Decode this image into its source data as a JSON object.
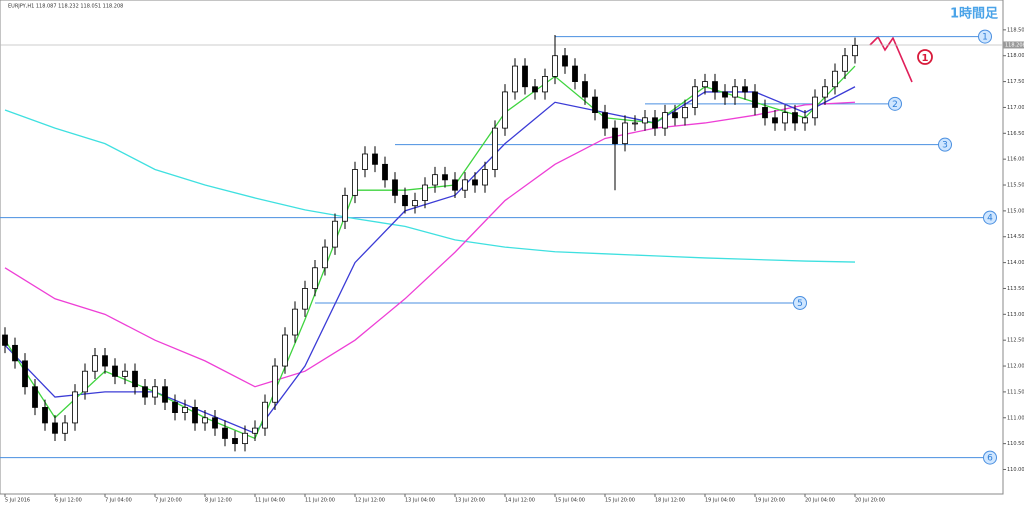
{
  "chart_data": {
    "type": "candlestick",
    "header": "EURJPY,H1 118.087 118.232 118.051 118.208",
    "title": "1時間足",
    "open": [
      112.6,
      112.4,
      112.1,
      111.6,
      111.2,
      110.9,
      110.7,
      110.9,
      111.5,
      111.9,
      112.2,
      112.0,
      111.8,
      111.9,
      111.6,
      111.4,
      111.6,
      111.3,
      111.1,
      111.2,
      110.9,
      111.0,
      110.8,
      110.6,
      110.5,
      110.7,
      110.8,
      111.3,
      112.0,
      112.6,
      113.1,
      113.5,
      113.9,
      114.3,
      114.8,
      115.3,
      115.8,
      116.1,
      115.9,
      115.6,
      115.3,
      115.1,
      115.2,
      115.5,
      115.7,
      115.6,
      115.4,
      115.6,
      115.5,
      115.8,
      116.6,
      117.3,
      117.8,
      117.4,
      117.3,
      117.6,
      118.0,
      117.8,
      117.5,
      117.2,
      116.9,
      116.6,
      116.3,
      116.7,
      116.7,
      116.8,
      116.6,
      116.9,
      116.8,
      117.0,
      117.4,
      117.5,
      117.3,
      117.2,
      117.4,
      117.3,
      117.0,
      116.8,
      116.7,
      116.9,
      116.7,
      116.8,
      117.2,
      117.4,
      117.7,
      118.0
    ],
    "high": [
      112.75,
      112.55,
      112.25,
      111.75,
      111.35,
      111.05,
      111.05,
      111.65,
      112.05,
      112.35,
      112.35,
      112.15,
      112.05,
      112.05,
      111.75,
      111.75,
      111.75,
      111.45,
      111.35,
      111.35,
      111.15,
      111.15,
      110.95,
      110.75,
      110.85,
      110.95,
      111.45,
      112.15,
      112.75,
      113.25,
      113.65,
      114.05,
      114.45,
      114.95,
      115.45,
      115.95,
      116.25,
      116.25,
      116.05,
      115.75,
      115.45,
      115.35,
      115.65,
      115.85,
      115.85,
      115.75,
      115.75,
      115.75,
      115.95,
      116.75,
      117.45,
      117.95,
      117.95,
      117.55,
      117.75,
      118.4,
      118.15,
      117.95,
      117.65,
      117.35,
      117.05,
      116.75,
      116.85,
      116.85,
      116.95,
      116.95,
      117.05,
      117.05,
      117.15,
      117.55,
      117.65,
      117.65,
      117.45,
      117.55,
      117.55,
      117.45,
      117.15,
      116.95,
      117.05,
      117.05,
      116.95,
      117.35,
      117.55,
      117.85,
      118.15,
      118.35
    ],
    "low": [
      112.25,
      111.95,
      111.45,
      111.05,
      110.75,
      110.55,
      110.55,
      110.75,
      111.35,
      111.75,
      111.85,
      111.65,
      111.65,
      111.45,
      111.25,
      111.25,
      111.15,
      110.95,
      110.95,
      110.75,
      110.75,
      110.65,
      110.45,
      110.35,
      110.35,
      110.55,
      110.65,
      111.15,
      111.85,
      112.45,
      112.95,
      113.35,
      113.75,
      114.15,
      114.65,
      115.15,
      115.65,
      115.75,
      115.45,
      115.15,
      114.95,
      114.95,
      115.05,
      115.35,
      115.45,
      115.25,
      115.25,
      115.35,
      115.35,
      115.65,
      116.45,
      117.15,
      117.25,
      117.15,
      117.15,
      117.45,
      117.65,
      117.35,
      117.05,
      116.75,
      116.45,
      115.4,
      116.15,
      116.55,
      116.55,
      116.45,
      116.45,
      116.65,
      116.65,
      116.85,
      117.25,
      117.15,
      117.05,
      117.05,
      117.15,
      116.85,
      116.65,
      116.55,
      116.55,
      116.55,
      116.55,
      116.65,
      117.05,
      117.25,
      117.55,
      117.85
    ],
    "close": [
      112.4,
      112.1,
      111.6,
      111.2,
      110.9,
      110.7,
      110.9,
      111.5,
      111.9,
      112.2,
      112.0,
      111.8,
      111.9,
      111.6,
      111.4,
      111.6,
      111.3,
      111.1,
      111.2,
      110.9,
      111.0,
      110.8,
      110.6,
      110.5,
      110.7,
      110.8,
      111.3,
      112.0,
      112.6,
      113.1,
      113.5,
      113.9,
      114.3,
      114.8,
      115.3,
      115.8,
      116.1,
      115.9,
      115.6,
      115.3,
      115.1,
      115.2,
      115.5,
      115.7,
      115.6,
      115.4,
      115.6,
      115.5,
      115.8,
      116.6,
      117.3,
      117.8,
      117.4,
      117.3,
      117.6,
      118.0,
      117.8,
      117.5,
      117.2,
      116.9,
      116.6,
      116.3,
      116.7,
      116.7,
      116.8,
      116.6,
      116.9,
      116.8,
      117.0,
      117.4,
      117.5,
      117.3,
      117.2,
      117.4,
      117.3,
      117.0,
      116.8,
      116.7,
      116.9,
      116.7,
      116.8,
      117.2,
      117.4,
      117.7,
      118.0,
      118.2
    ],
    "ma_x": [
      0,
      5,
      10,
      15,
      20,
      25,
      30,
      35,
      40,
      45,
      50,
      55,
      60,
      65,
      70,
      75,
      80,
      85
    ],
    "ma_lines": [
      {
        "color": "#3fe0e0",
        "values": [
          116.95,
          116.6,
          116.3,
          115.8,
          115.5,
          115.25,
          115.02,
          114.85,
          114.7,
          114.44,
          114.3,
          114.21,
          114.17,
          114.13,
          114.09,
          114.06,
          114.03,
          114.01
        ]
      },
      {
        "color": "#ee3fd6",
        "values": [
          113.9,
          113.3,
          113.0,
          112.5,
          112.1,
          111.6,
          111.9,
          112.5,
          113.3,
          114.2,
          115.2,
          115.9,
          116.4,
          116.6,
          116.7,
          116.85,
          117.05,
          117.1
        ]
      },
      {
        "color": "#3b3bd6",
        "values": [
          112.4,
          111.4,
          111.5,
          111.5,
          111.1,
          110.7,
          112.0,
          114.0,
          115.0,
          115.3,
          116.3,
          117.1,
          116.9,
          116.7,
          117.3,
          117.3,
          116.9,
          117.4
        ]
      },
      {
        "color": "#3fd43f",
        "values": [
          112.5,
          111.0,
          111.9,
          111.5,
          111.0,
          110.6,
          112.9,
          115.4,
          115.4,
          115.5,
          116.9,
          117.6,
          116.8,
          116.7,
          117.4,
          117.1,
          116.8,
          117.8
        ]
      }
    ],
    "levels": [
      {
        "label": "1",
        "value": 118.37,
        "from": 55
      },
      {
        "label": "2",
        "value": 117.07,
        "from": 64
      },
      {
        "label": "3",
        "value": 116.28,
        "from": 39
      },
      {
        "label": "4",
        "value": 114.87,
        "from": 0
      },
      {
        "label": "5",
        "value": 113.22,
        "from": 31
      },
      {
        "label": "6",
        "value": 110.23,
        "from": 0
      }
    ],
    "bid": 118.208,
    "scenario_label": "1",
    "ylim": [
      109.7,
      119.0
    ],
    "yticks": [
      {
        "value": 110,
        "label": "110.000"
      },
      {
        "value": 110.5,
        "label": "110.500"
      },
      {
        "value": 111,
        "label": "111.000"
      },
      {
        "value": 111.5,
        "label": "111.500"
      },
      {
        "value": 112,
        "label": "112.000"
      },
      {
        "value": 112.5,
        "label": "112.500"
      },
      {
        "value": 113,
        "label": "113.000"
      },
      {
        "value": 113.5,
        "label": "113.500"
      },
      {
        "value": 114,
        "label": "114.000"
      },
      {
        "value": 114.5,
        "label": "114.500"
      },
      {
        "value": 115,
        "label": "115.000"
      },
      {
        "value": 115.5,
        "label": "115.500"
      },
      {
        "value": 116,
        "label": "116.000"
      },
      {
        "value": 116.5,
        "label": "116.500"
      },
      {
        "value": 117,
        "label": "117.000"
      },
      {
        "value": 117.5,
        "label": "117.500"
      },
      {
        "value": 118,
        "label": "118.000"
      },
      {
        "value": 118.5,
        "label": "118.500"
      }
    ],
    "xticks": [
      {
        "value": 0,
        "label": "5 Jul 2016"
      },
      {
        "value": 5,
        "label": "6 Jul 12:00"
      },
      {
        "value": 10,
        "label": "7 Jul 04:00"
      },
      {
        "value": 15,
        "label": "7 Jul 20:00"
      },
      {
        "value": 20,
        "label": "8 Jul 12:00"
      },
      {
        "value": 25,
        "label": "11 Jul 04:00"
      },
      {
        "value": 30,
        "label": "11 Jul 20:00"
      },
      {
        "value": 35,
        "label": "12 Jul 12:00"
      },
      {
        "value": 40,
        "label": "13 Jul 04:00"
      },
      {
        "value": 45,
        "label": "13 Jul 20:00"
      },
      {
        "value": 50,
        "label": "14 Jul 12:00"
      },
      {
        "value": 55,
        "label": "15 Jul 04:00"
      },
      {
        "value": 60,
        "label": "15 Jul 20:00"
      },
      {
        "value": 65,
        "label": "18 Jul 12:00"
      },
      {
        "value": 70,
        "label": "19 Jul 04:00"
      },
      {
        "value": 75,
        "label": "19 Jul 20:00"
      },
      {
        "value": 80,
        "label": "20 Jul 04:00"
      },
      {
        "value": 85,
        "label": "20 Jul 20:00"
      }
    ]
  }
}
